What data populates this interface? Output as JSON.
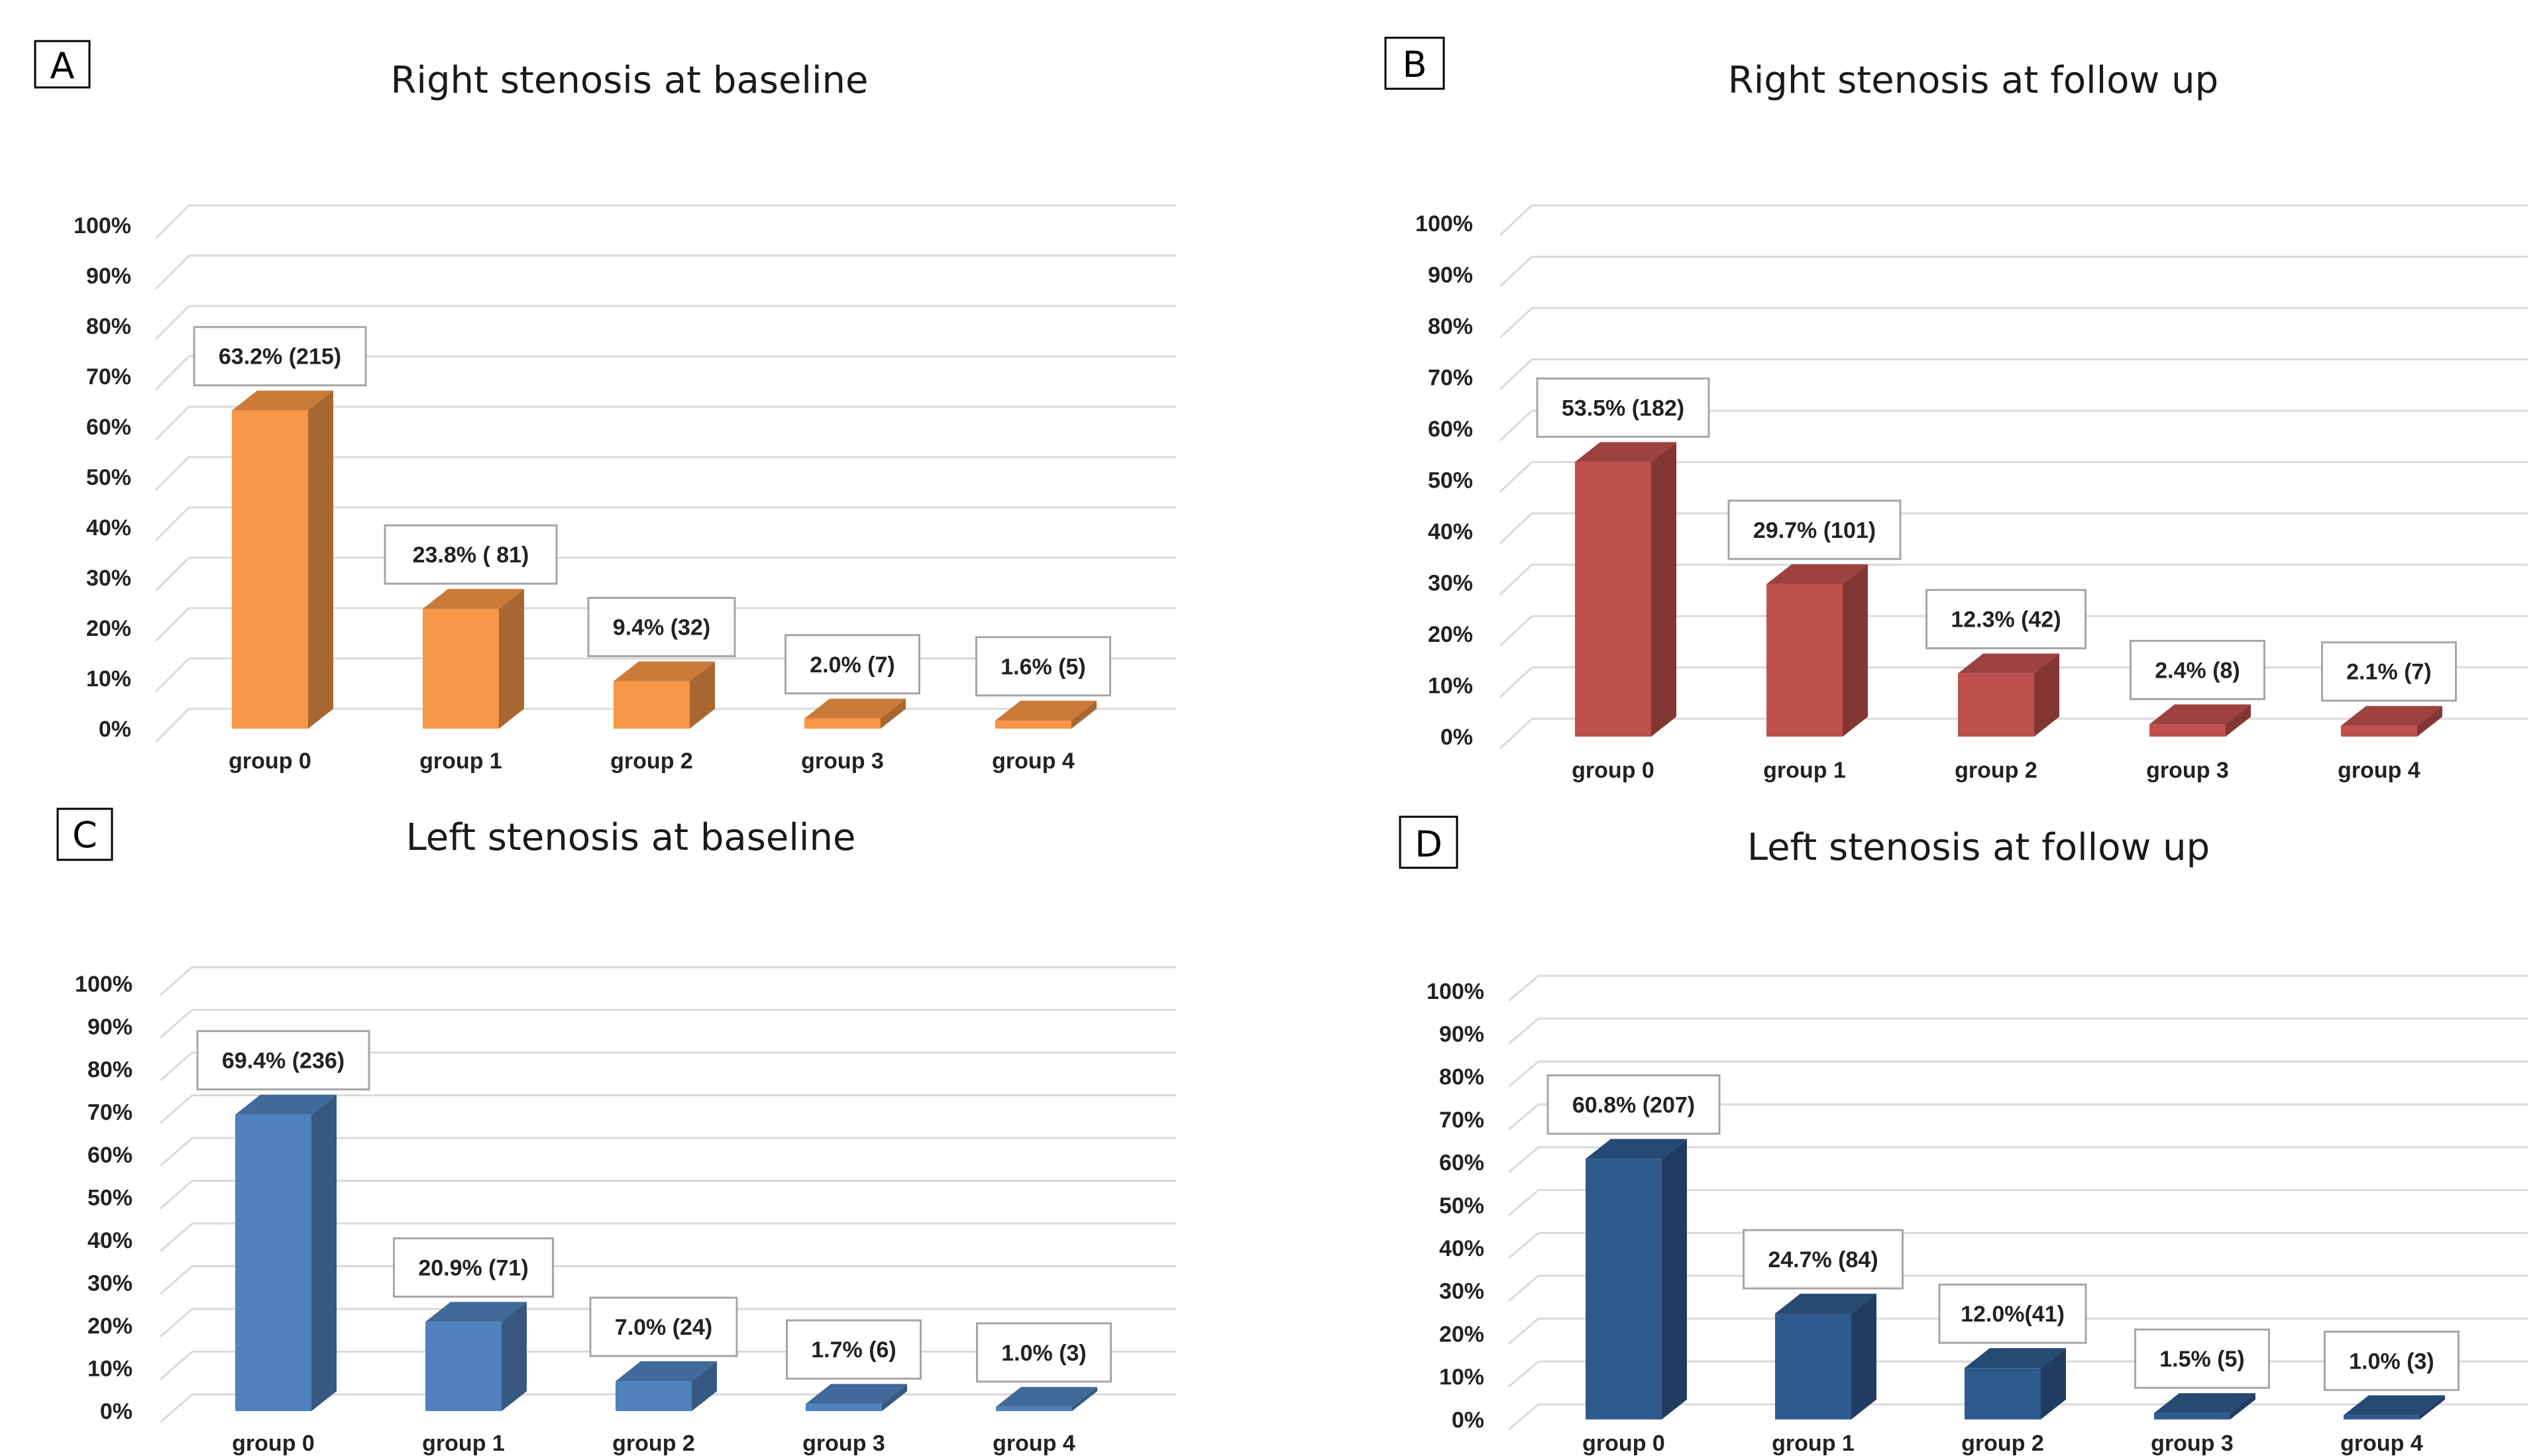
{
  "chart_data": [
    {
      "panel_label": "A",
      "type": "bar",
      "title": "Right stenosis at baseline",
      "categories": [
        "group 0",
        "group 1",
        "group 2",
        "group 3",
        "group 4"
      ],
      "values": [
        63.2,
        23.8,
        9.4,
        2.0,
        1.6
      ],
      "data_labels": [
        "63.2% (215)",
        "23.8% ( 81)",
        "9.4% (32)",
        "2.0% (7)",
        "1.6% (5)"
      ],
      "y_ticks": [
        "0%",
        "10%",
        "20%",
        "30%",
        "40%",
        "50%",
        "60%",
        "70%",
        "80%",
        "90%",
        "100%"
      ],
      "ylim": [
        0,
        100
      ],
      "grid": true,
      "color": "#F79646"
    },
    {
      "panel_label": "B",
      "type": "bar",
      "title": "Right stenosis at follow up",
      "categories": [
        "group 0",
        "group 1",
        "group 2",
        "group 3",
        "group 4"
      ],
      "values": [
        53.5,
        29.7,
        12.3,
        2.4,
        2.1
      ],
      "data_labels": [
        "53.5% (182)",
        "29.7% (101)",
        "12.3% (42)",
        "2.4% (8)",
        "2.1% (7)"
      ],
      "y_ticks": [
        "0%",
        "10%",
        "20%",
        "30%",
        "40%",
        "50%",
        "60%",
        "70%",
        "80%",
        "90%",
        "100%"
      ],
      "ylim": [
        0,
        100
      ],
      "grid": true,
      "color": "#C0504D"
    },
    {
      "panel_label": "C",
      "type": "bar",
      "title": "Left stenosis at baseline",
      "categories": [
        "group 0",
        "group 1",
        "group 2",
        "group 3",
        "group 4"
      ],
      "values": [
        69.4,
        20.9,
        7.0,
        1.7,
        1.0
      ],
      "data_labels": [
        "69.4% (236)",
        "20.9% (71)",
        "7.0% (24)",
        "1.7% (6)",
        "1.0% (3)"
      ],
      "y_ticks": [
        "0%",
        "10%",
        "20%",
        "30%",
        "40%",
        "50%",
        "60%",
        "70%",
        "80%",
        "90%",
        "100%"
      ],
      "ylim": [
        0,
        100
      ],
      "grid": true,
      "color": "#4F81BD"
    },
    {
      "panel_label": "D",
      "type": "bar",
      "title": "Left stenosis at follow up",
      "categories": [
        "group 0",
        "group 1",
        "group 2",
        "group 3",
        "group 4"
      ],
      "values": [
        60.8,
        24.7,
        12.0,
        1.5,
        1.0
      ],
      "data_labels": [
        "60.8% (207)",
        "24.7% (84)",
        "12.0%(41)",
        "1.5% (5)",
        "1.0% (3)"
      ],
      "y_ticks": [
        "0%",
        "10%",
        "20%",
        "30%",
        "40%",
        "50%",
        "60%",
        "70%",
        "80%",
        "90%",
        "100%"
      ],
      "ylim": [
        0,
        100
      ],
      "grid": true,
      "color": "#2F5A8E"
    }
  ]
}
